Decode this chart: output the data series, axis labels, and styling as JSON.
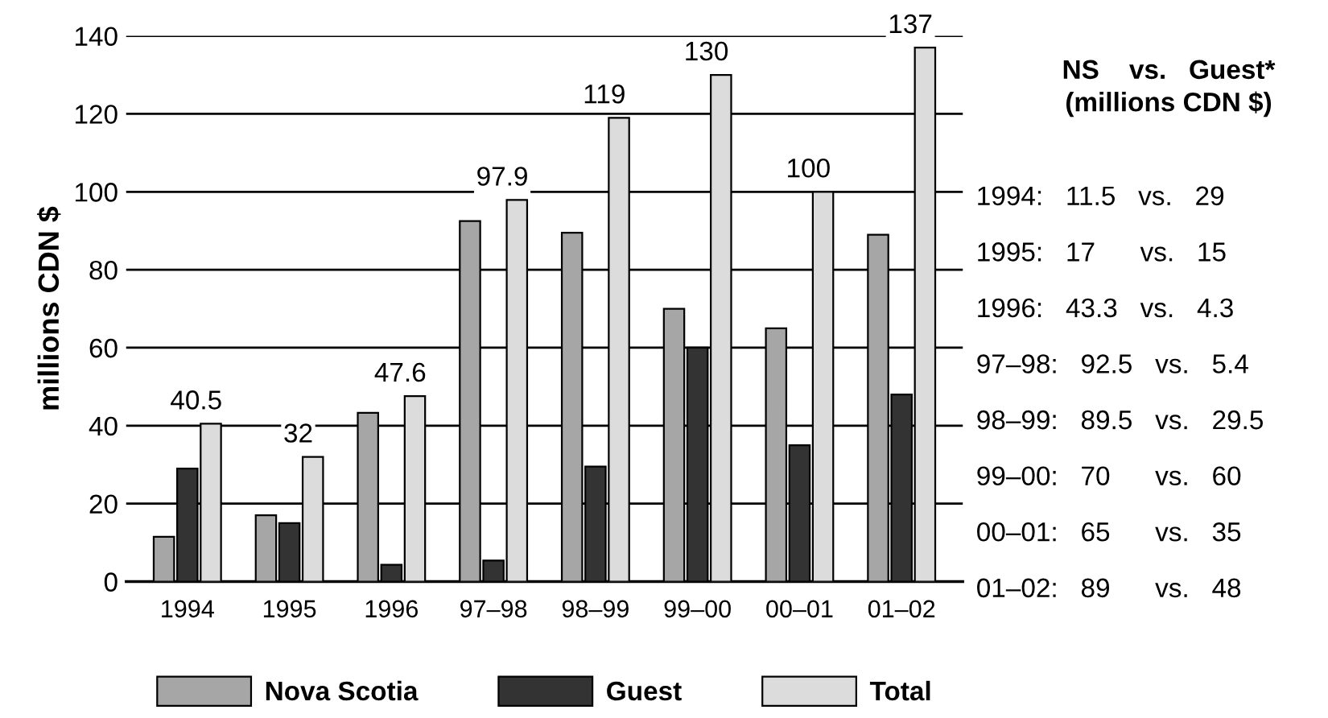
{
  "chart_data": {
    "type": "bar",
    "ylabel": "millions CDN $",
    "categories": [
      "1994",
      "1995",
      "1996",
      "97–98",
      "98–99",
      "99–00",
      "00–01",
      "01–02"
    ],
    "series": [
      {
        "name": "Nova Scotia",
        "color": "#a6a6a6",
        "values": [
          11.5,
          17,
          43.3,
          92.5,
          89.5,
          70,
          65,
          89
        ]
      },
      {
        "name": "Guest",
        "color": "#333333",
        "values": [
          29,
          15,
          4.3,
          5.4,
          29.5,
          60,
          35,
          48
        ]
      },
      {
        "name": "Total",
        "color": "#dcdcdc",
        "values": [
          40.5,
          32,
          47.6,
          97.9,
          119,
          130,
          100,
          137
        ],
        "value_labels": [
          "40.5",
          "32",
          "47.6",
          "97.9",
          "119",
          "130",
          "100",
          "137"
        ]
      }
    ],
    "ylim": [
      0,
      140
    ],
    "yticks": [
      0,
      20,
      40,
      60,
      80,
      100,
      120,
      140
    ],
    "grid": "y",
    "legend": "bottom",
    "annotations": [
      "NS    vs.   Guest*",
      "(millions CDN $)",
      "1994:   11.5   vs.   29",
      "1995:   17      vs.   15",
      "1996:   43.3   vs.   4.3",
      "97–98:   92.5   vs.   5.4",
      "98–99:   89.5   vs.   29.5",
      "99–00:   70      vs.   60",
      "00–01:   65      vs.   35",
      "01–02:   89      vs.   48"
    ]
  }
}
